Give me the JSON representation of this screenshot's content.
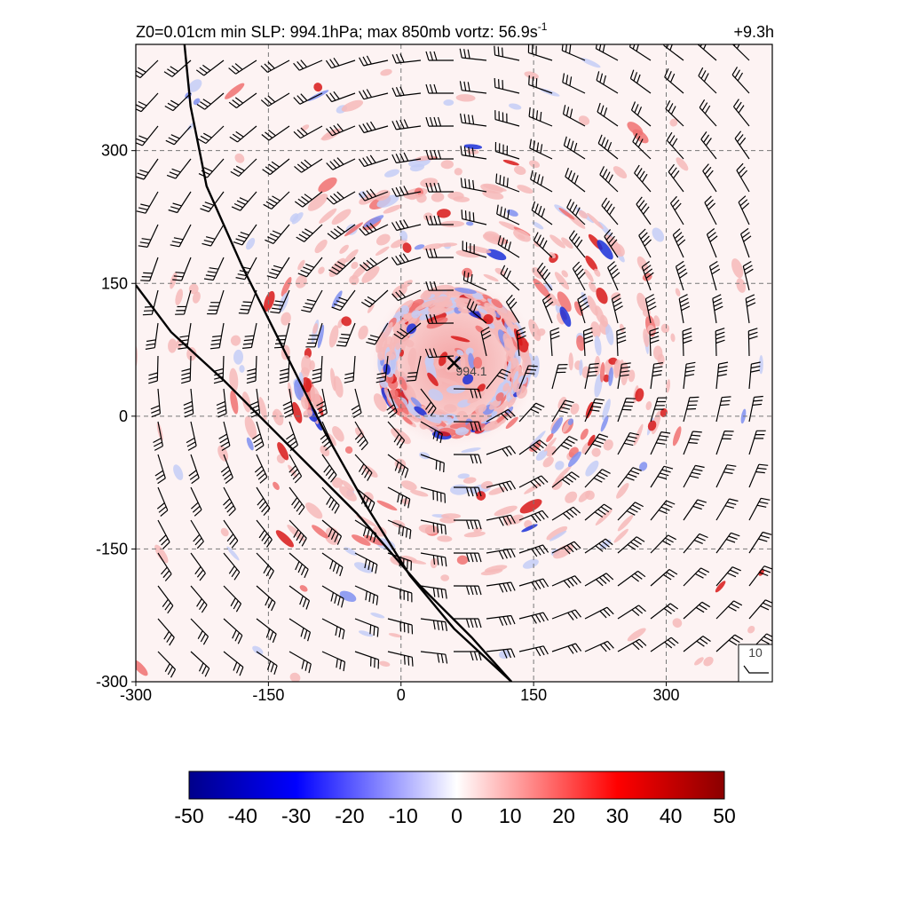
{
  "chart_data": {
    "type": "heatmap",
    "title": "Z0=0.01cm  min SLP: 994.1hPa; max 850mb vortz:  56.9s",
    "title_superscript": "-1",
    "time_label": "+9.3h",
    "xlabel": "",
    "ylabel": "",
    "xlim": [
      -300,
      420
    ],
    "ylim": [
      -300,
      420
    ],
    "x_ticks": [
      -300,
      -150,
      0,
      150,
      300
    ],
    "y_ticks": [
      -300,
      -150,
      0,
      150,
      300
    ],
    "grid": true,
    "center": {
      "x": 60,
      "y": 60,
      "label": "994.1",
      "marker": "x"
    },
    "fields": "850mb relative vorticity (shaded) with wind barbs",
    "colorscale": {
      "min": -50,
      "max": 50,
      "ticks": [
        -50,
        -40,
        -30,
        -20,
        -10,
        0,
        10,
        20,
        30,
        40,
        50
      ],
      "colors": [
        "#00008b",
        "#0000ff",
        "#ffffff",
        "#ff0000",
        "#8b0000"
      ]
    },
    "lines": [
      {
        "name": "",
        "points": [
          [
            -245,
            420
          ],
          [
            -238,
            350
          ],
          [
            -220,
            260
          ],
          [
            -180,
            170
          ],
          [
            -135,
            80
          ],
          [
            -85,
            -20
          ],
          [
            -40,
            -100
          ],
          [
            10,
            -180
          ],
          [
            60,
            -240
          ],
          [
            125,
            -300
          ]
        ]
      },
      {
        "name": "",
        "points": [
          [
            -300,
            148
          ],
          [
            -260,
            95
          ],
          [
            -200,
            40
          ],
          [
            -130,
            -30
          ],
          [
            -50,
            -110
          ],
          [
            20,
            -190
          ],
          [
            80,
            -250
          ],
          [
            125,
            -300
          ]
        ]
      }
    ],
    "barb_reference": {
      "label": "10"
    }
  }
}
